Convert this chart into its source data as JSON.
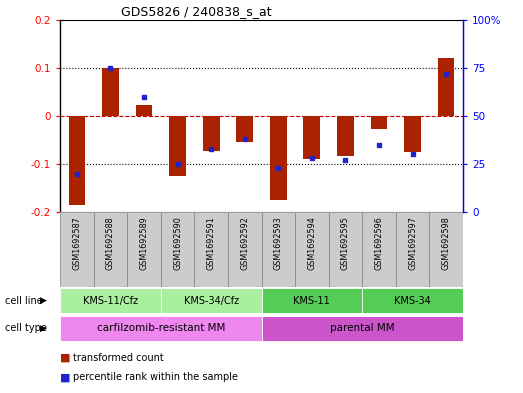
{
  "title": "GDS5826 / 240838_s_at",
  "samples": [
    "GSM1692587",
    "GSM1692588",
    "GSM1692589",
    "GSM1692590",
    "GSM1692591",
    "GSM1692592",
    "GSM1692593",
    "GSM1692594",
    "GSM1692595",
    "GSM1692596",
    "GSM1692597",
    "GSM1692598"
  ],
  "transformed_count": [
    -0.185,
    0.1,
    0.022,
    -0.125,
    -0.072,
    -0.055,
    -0.175,
    -0.09,
    -0.083,
    -0.028,
    -0.075,
    0.12
  ],
  "percentile_rank": [
    20,
    75,
    60,
    25,
    33,
    38,
    23,
    28,
    27,
    35,
    30,
    72
  ],
  "ylim_left": [
    -0.2,
    0.2
  ],
  "ylim_right": [
    0,
    100
  ],
  "yticks_left": [
    -0.2,
    -0.1,
    0.0,
    0.1,
    0.2
  ],
  "yticks_right": [
    0,
    25,
    50,
    75,
    100
  ],
  "ytick_labels_right": [
    "0",
    "25",
    "50",
    "75",
    "100%"
  ],
  "bar_color": "#aa2200",
  "dot_color": "#2222cc",
  "zero_line_color": "#cc0000",
  "gridline_color": "#000000",
  "cell_line_groups": [
    {
      "label": "KMS-11/Cfz",
      "start": 0,
      "end": 3,
      "color": "#aaeea0"
    },
    {
      "label": "KMS-34/Cfz",
      "start": 3,
      "end": 6,
      "color": "#aaeea0"
    },
    {
      "label": "KMS-11",
      "start": 6,
      "end": 9,
      "color": "#55cc55"
    },
    {
      "label": "KMS-34",
      "start": 9,
      "end": 12,
      "color": "#55cc55"
    }
  ],
  "cell_type_groups": [
    {
      "label": "carfilzomib-resistant MM",
      "start": 0,
      "end": 6,
      "color": "#ee88ee"
    },
    {
      "label": "parental MM",
      "start": 6,
      "end": 12,
      "color": "#cc55cc"
    }
  ],
  "cell_line_label": "cell line",
  "cell_type_label": "cell type",
  "legend_items": [
    {
      "color": "#aa2200",
      "label": "transformed count"
    },
    {
      "color": "#2222cc",
      "label": "percentile rank within the sample"
    }
  ],
  "sample_box_color": "#cccccc",
  "bar_width": 0.5
}
